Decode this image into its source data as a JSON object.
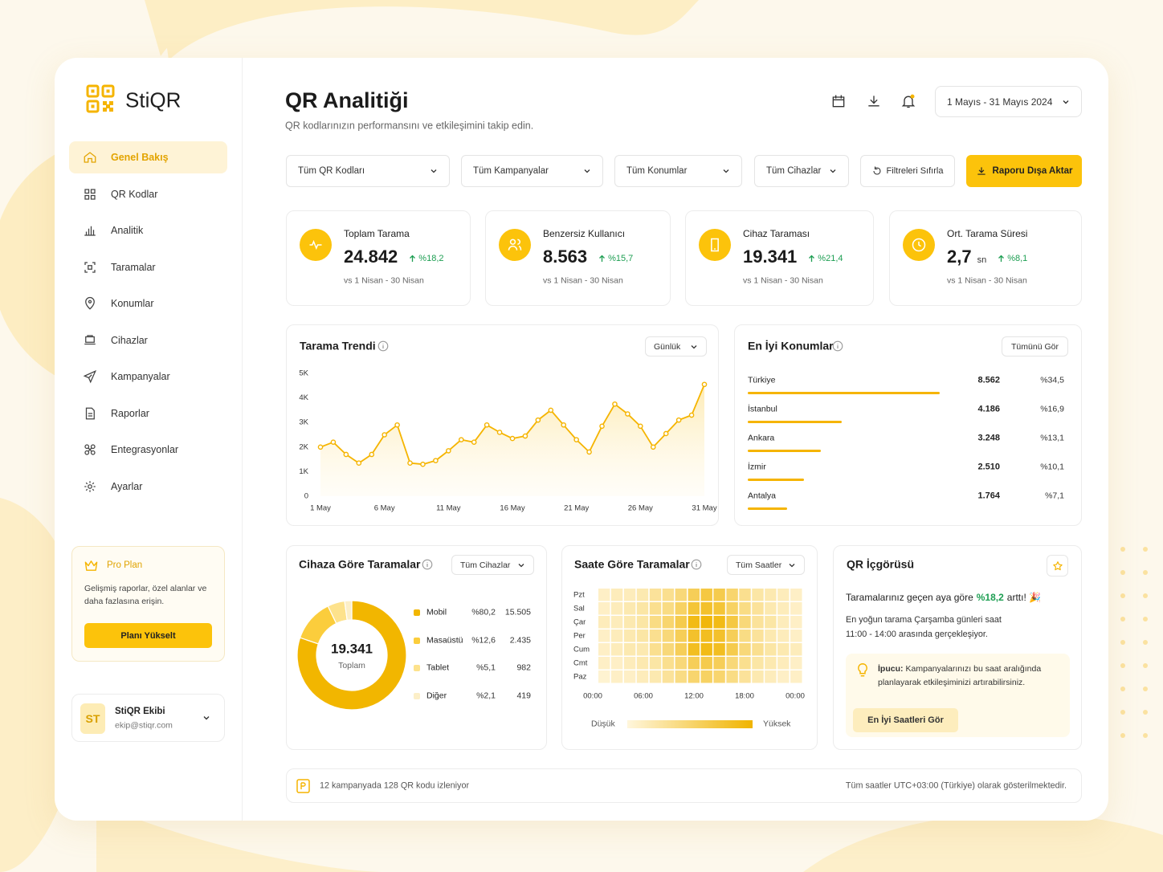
{
  "brand": "StiQR",
  "nav": [
    "Genel Bakış",
    "QR Kodlar",
    "Analitik",
    "Taramalar",
    "Konumlar",
    "Cihazlar",
    "Kampanyalar",
    "Raporlar",
    "Entegrasyonlar",
    "Ayarlar"
  ],
  "pro_plan": {
    "title": "Pro Plan",
    "text": "Gelişmiş raporlar, özel alanlar ve daha fazlasına erişin.",
    "button": "Planı Yükselt"
  },
  "user": {
    "initials": "ST",
    "name": "StiQR Ekibi",
    "email": "ekip@stiqr.com"
  },
  "header": {
    "title": "QR Analitiği",
    "subtitle": "QR kodlarınızın performansını ve etkileşimini takip edin.",
    "date_range": "1 Mayıs - 31 Mayıs 2024"
  },
  "filters": {
    "options": [
      "Tüm QR Kodları",
      "Tüm Kampanyalar",
      "Tüm Konumlar",
      "Tüm Cihazlar"
    ],
    "reset": "Filtreleri Sıfırla",
    "export": "Raporu Dışa Aktar"
  },
  "kpis": [
    {
      "label": "Toplam Tarama",
      "value": "24.842",
      "change": "%18,2",
      "comparison": "vs 1 Nisan - 30 Nisan"
    },
    {
      "label": "Benzersiz Kullanıcı",
      "value": "8.563",
      "change": "%15,7",
      "comparison": "vs 1 Nisan - 30 Nisan"
    },
    {
      "label": "Cihaz Taraması",
      "value": "19.341",
      "change": "%21,4",
      "comparison": "vs 1 Nisan - 30 Nisan"
    },
    {
      "label": "Ort. Tarama Süresi",
      "value": "2,7",
      "unit": "sn",
      "change": "%8,1",
      "comparison": "vs 1 Nisan - 30 Nisan"
    }
  ],
  "trend": {
    "type": "line",
    "title": "Tarama Trendi",
    "period": "Günlük",
    "color": "#f5b400",
    "categories": [
      "1 May",
      null,
      null,
      null,
      null,
      "6 May",
      null,
      null,
      null,
      null,
      "11 May",
      null,
      null,
      null,
      null,
      "16 May",
      null,
      null,
      null,
      null,
      "21 May",
      null,
      null,
      null,
      null,
      "26 May",
      null,
      null,
      null,
      null,
      "31 May"
    ],
    "values": [
      2000,
      2200,
      1700,
      1350,
      1700,
      2500,
      2900,
      1350,
      1300,
      1450,
      1850,
      2300,
      2200,
      2900,
      2600,
      2350,
      2450,
      3100,
      3500,
      2900,
      2300,
      1800,
      2850,
      3750,
      3350,
      2850,
      2000,
      2550,
      3100,
      3300,
      4550
    ],
    "ylim": [
      0,
      5000
    ],
    "yticks": [
      0,
      {
        "value": 1000,
        "label": "1K"
      },
      {
        "value": 2000,
        "label": "2K"
      },
      {
        "value": 3000,
        "label": "3K"
      },
      {
        "value": 4000,
        "label": "4K"
      },
      {
        "value": 5000,
        "label": "5K"
      }
    ]
  },
  "top_locations": {
    "title": "En İyi Konumlar",
    "button": "Tümünü Gör",
    "color": "#f5b400",
    "rows": [
      {
        "name": "Türkiye",
        "value": 8562,
        "value_label": "8.562",
        "share": 34.5,
        "share_label": "%34,5"
      },
      {
        "name": "İstanbul",
        "value": 4186,
        "value_label": "4.186",
        "share": 16.9,
        "share_label": "%16,9"
      },
      {
        "name": "Ankara",
        "value": 3248,
        "value_label": "3.248",
        "share": 13.1,
        "share_label": "%13,1"
      },
      {
        "name": "İzmir",
        "value": 2510,
        "value_label": "2.510",
        "share": 10.1,
        "share_label": "%10,1"
      },
      {
        "name": "Antalya",
        "value": 1764,
        "value_label": "1.764",
        "share": 7.1,
        "share_label": "%7,1"
      }
    ]
  },
  "devices": {
    "type": "pie",
    "title": "Cihaza Göre Taramalar",
    "filter": "Tüm Cihazlar",
    "total": "19.341",
    "total_label": "Toplam",
    "segments": [
      {
        "name": "Mobil",
        "share": 80.2,
        "share_label": "%80,2",
        "count": "15.505",
        "color": "#f2b600"
      },
      {
        "name": "Masaüstü",
        "share": 12.6,
        "share_label": "%12,6",
        "count": "2.435",
        "color": "#fbcd3c"
      },
      {
        "name": "Tablet",
        "share": 5.1,
        "share_label": "%5,1",
        "count": "982",
        "color": "#fde28c"
      },
      {
        "name": "Diğer",
        "share": 2.1,
        "share_label": "%2,1",
        "count": "419",
        "color": "#fcefc8"
      }
    ]
  },
  "hourly": {
    "type": "heatmap",
    "title": "Saate Göre Taramalar",
    "filter": "Tüm Saatler",
    "days": [
      "Pzt",
      "Sal",
      "Çar",
      "Per",
      "Cum",
      "Cmt",
      "Paz"
    ],
    "hours": [
      "00:00",
      "06:00",
      "12:00",
      "18:00",
      "00:00"
    ],
    "values": [
      [
        10,
        15,
        15,
        20,
        30,
        35,
        45,
        60,
        70,
        65,
        50,
        35,
        25,
        20,
        15,
        10
      ],
      [
        10,
        15,
        20,
        25,
        35,
        40,
        55,
        75,
        80,
        75,
        55,
        40,
        30,
        20,
        15,
        10
      ],
      [
        15,
        15,
        20,
        25,
        40,
        50,
        65,
        90,
        95,
        90,
        70,
        45,
        30,
        25,
        15,
        10
      ],
      [
        10,
        15,
        20,
        25,
        35,
        45,
        60,
        80,
        85,
        80,
        60,
        40,
        30,
        20,
        15,
        10
      ],
      [
        10,
        15,
        20,
        20,
        35,
        45,
        60,
        85,
        90,
        85,
        65,
        45,
        35,
        25,
        20,
        15
      ],
      [
        10,
        10,
        15,
        20,
        25,
        35,
        45,
        60,
        65,
        60,
        45,
        35,
        25,
        20,
        15,
        10
      ],
      [
        5,
        10,
        10,
        15,
        20,
        30,
        40,
        50,
        55,
        50,
        40,
        30,
        20,
        15,
        10,
        10
      ]
    ],
    "legend_low": "Düşük",
    "legend_high": "Yüksek"
  },
  "insight": {
    "title": "QR İçgörüsü",
    "headline_before": "Taramalarınız geçen aya göre",
    "headline_highlight": "%18,2",
    "headline_after": "arttı! 🎉",
    "detail": "En yoğun tarama Çarşamba günleri saat 11:00 - 14:00 arasında gerçekleşiyor.",
    "tip_label": "İpucu:",
    "tip_text": "Kampanyalarınızı bu saat aralığında planlayarak etkileşiminizi artırabilirsiniz.",
    "button": "En İyi Saatleri Gör"
  },
  "footer": {
    "left": "12 kampanyada 128 QR kodu izleniyor",
    "right": "Tüm saatler UTC+03:00 (Türkiye) olarak gösterilmektedir."
  }
}
